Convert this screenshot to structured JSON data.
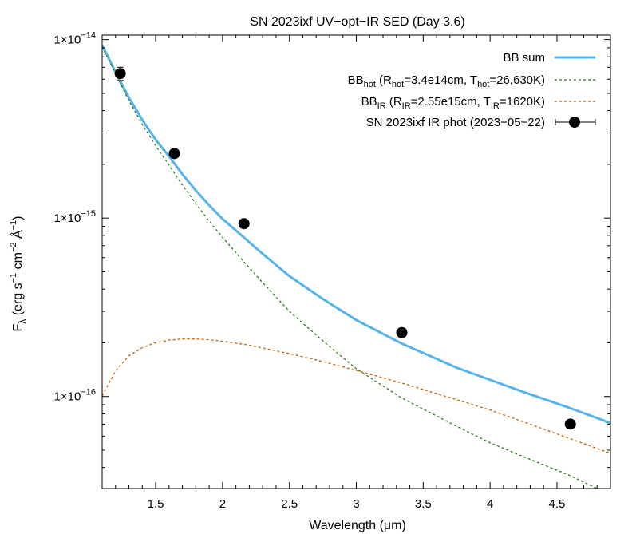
{
  "chart_data": {
    "type": "line",
    "title": "SN 2023ixf UV−opt−IR SED (Day 3.6)",
    "xlabel": "Wavelength (μm)",
    "ylabel": {
      "base": "F",
      "sub": "λ",
      "text": " (erg s",
      "exp1": "−1",
      "text2": " cm",
      "exp2": "−2",
      "text3": " Å",
      "exp3": "−1",
      "text4": ")"
    },
    "xlim": [
      1.1,
      4.9
    ],
    "ylim": [
      3.05e-17,
      1.06e-14
    ],
    "yscale": "log",
    "grid": false,
    "legend_position": "top-right",
    "x_ticks": [
      1.5,
      2,
      2.5,
      3,
      3.5,
      4,
      4.5
    ],
    "x_tick_labels": [
      "1.5",
      "2",
      "2.5",
      "3",
      "3.5",
      "4",
      "4.5"
    ],
    "y_ticks": [
      {
        "value": 1e-14,
        "mantissa": "1×10",
        "exponent": "−14"
      },
      {
        "value": 1e-15,
        "mantissa": "1×10",
        "exponent": "−15"
      },
      {
        "value": 1e-16,
        "mantissa": "1×10",
        "exponent": "−16"
      }
    ],
    "series": [
      {
        "key": "bb_sum",
        "kind": "line",
        "color": "#56b4e9",
        "dash": "none",
        "legend": [
          {
            "t": "BB sum"
          }
        ],
        "x": [
          1.1,
          1.2,
          1.3,
          1.4,
          1.5,
          1.6,
          1.7,
          1.8,
          1.9,
          2.0,
          2.15,
          2.3,
          2.5,
          2.75,
          3.0,
          3.34,
          3.75,
          4.25,
          4.6,
          4.9
        ],
        "y": [
          9.3e-15,
          6.58e-15,
          4.74e-15,
          3.55e-15,
          2.75e-15,
          2.22e-15,
          1.76e-15,
          1.43e-15,
          1.18e-15,
          9.9e-16,
          7.9e-16,
          6.3e-16,
          4.73e-16,
          3.52e-16,
          2.68e-16,
          1.98e-16,
          1.45e-16,
          1.06e-16,
          8.6e-17,
          7.1e-17
        ]
      },
      {
        "key": "bb_hot",
        "kind": "line",
        "color": "#2a7e19",
        "dash": "3,3",
        "legend": [
          {
            "t": "BB"
          },
          {
            "t": "hot",
            "s": "sub"
          },
          {
            "t": " (R"
          },
          {
            "t": "hot",
            "s": "sub"
          },
          {
            "t": "=3.4e14cm, T"
          },
          {
            "t": "hot",
            "s": "sub"
          },
          {
            "t": "=26,630K)"
          }
        ],
        "x": [
          1.1,
          1.2,
          1.3,
          1.4,
          1.5,
          1.6,
          1.7,
          1.8,
          1.9,
          2.0,
          2.15,
          2.3,
          2.5,
          2.75,
          3.0,
          3.34,
          3.75,
          4.0,
          4.25,
          4.6,
          4.8
        ],
        "y": [
          9.1e-15,
          6.45e-15,
          4.55e-15,
          3.35e-15,
          2.55e-15,
          1.98e-15,
          1.53e-15,
          1.21e-15,
          9.6e-16,
          7.8e-16,
          5.8e-16,
          4.35e-16,
          3e-16,
          2.05e-16,
          1.43e-16,
          9.8e-17,
          6.8e-17,
          5.5e-17,
          4.6e-17,
          3.6e-17,
          3.05e-17
        ]
      },
      {
        "key": "bb_ir",
        "kind": "line",
        "color": "#d55e00",
        "dash": "3,3",
        "legend": [
          {
            "t": "BB"
          },
          {
            "t": "IR",
            "s": "sub"
          },
          {
            "t": " (R"
          },
          {
            "t": "IR",
            "s": "sub"
          },
          {
            "t": "=2.55e15cm, T"
          },
          {
            "t": "IR",
            "s": "sub"
          },
          {
            "t": "=1620K)"
          }
        ],
        "x": [
          1.1,
          1.2,
          1.3,
          1.4,
          1.5,
          1.6,
          1.7,
          1.8,
          1.9,
          2.0,
          2.2,
          2.5,
          2.75,
          3.0,
          3.34,
          3.75,
          4.0,
          4.25,
          4.6,
          4.9
        ],
        "y": [
          1.01e-16,
          1.39e-16,
          1.69e-16,
          1.88e-16,
          2e-16,
          2.07e-16,
          2.1e-16,
          2.1e-16,
          2.08e-16,
          2.04e-16,
          1.94e-16,
          1.74e-16,
          1.57e-16,
          1.4e-16,
          1.19e-16,
          9.6e-17,
          8.4e-17,
          7.2e-17,
          5.8e-17,
          4.8e-17
        ]
      },
      {
        "key": "ir_phot",
        "kind": "scatter",
        "color": "#000000",
        "legend": [
          {
            "t": "SN 2023ixf IR phot (2023−05−22)"
          }
        ],
        "points": [
          {
            "x": 1.235,
            "y": 6.45e-15,
            "yerr_low": 5.9e-15,
            "yerr_high": 7e-15
          },
          {
            "x": 1.64,
            "y": 2.3e-15
          },
          {
            "x": 2.16,
            "y": 9.3e-16
          },
          {
            "x": 3.34,
            "y": 2.28e-16
          },
          {
            "x": 4.6,
            "y": 7e-17
          }
        ]
      }
    ]
  }
}
